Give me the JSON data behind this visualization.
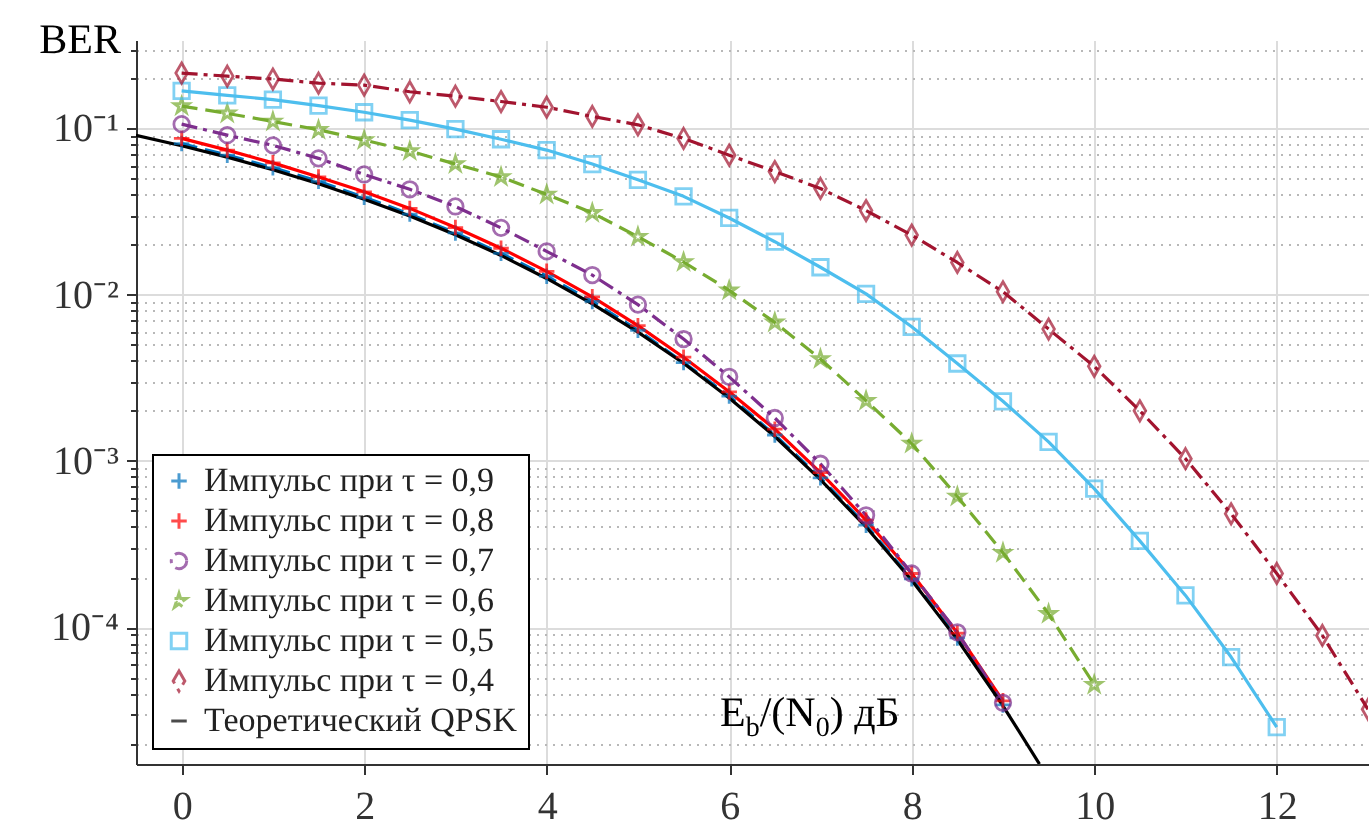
{
  "chart_data": {
    "type": "line",
    "xlabel": "E$_{b}$/(N$_{0}$) дБ",
    "ylabel": "BER",
    "log": "y",
    "grid": true,
    "legend": "bottom left",
    "xlim": [
      -0.5,
      13
    ],
    "xticks": [
      0,
      2,
      4,
      6,
      8,
      10,
      12
    ],
    "ylim": [
      1.5e-05,
      0.34
    ],
    "yticks": [
      {
        "value": 0.0001,
        "label": "10⁻⁴"
      },
      {
        "value": 0.001,
        "label": "10⁻³"
      },
      {
        "value": 0.01,
        "label": "10⁻²"
      },
      {
        "value": 0.1,
        "label": "10⁻¹"
      },
      {
        "value": 2e-05,
        "label": null
      },
      {
        "value": 3e-05,
        "label": null
      },
      {
        "value": 4e-05,
        "label": null
      },
      {
        "value": 5e-05,
        "label": null
      },
      {
        "value": 6e-05,
        "label": null
      },
      {
        "value": 7e-05,
        "label": null
      },
      {
        "value": 8e-05,
        "label": null
      },
      {
        "value": 9e-05,
        "label": null
      },
      {
        "value": 0.0002,
        "label": null
      },
      {
        "value": 0.0003,
        "label": null
      },
      {
        "value": 0.0004,
        "label": null
      },
      {
        "value": 0.0005,
        "label": null
      },
      {
        "value": 0.0006,
        "label": null
      },
      {
        "value": 0.0007,
        "label": null
      },
      {
        "value": 0.0008,
        "label": null
      },
      {
        "value": 0.0009,
        "label": null
      },
      {
        "value": 0.002,
        "label": null
      },
      {
        "value": 0.003,
        "label": null
      },
      {
        "value": 0.004,
        "label": null
      },
      {
        "value": 0.005,
        "label": null
      },
      {
        "value": 0.006,
        "label": null
      },
      {
        "value": 0.007,
        "label": null
      },
      {
        "value": 0.008,
        "label": null
      },
      {
        "value": 0.009,
        "label": null
      },
      {
        "value": 0.02,
        "label": null
      },
      {
        "value": 0.03,
        "label": null
      },
      {
        "value": 0.04,
        "label": null
      },
      {
        "value": 0.05,
        "label": null
      },
      {
        "value": 0.06,
        "label": null
      },
      {
        "value": 0.07,
        "label": null
      },
      {
        "value": 0.08,
        "label": null
      },
      {
        "value": 0.09,
        "label": null
      },
      {
        "value": 0.2,
        "label": null
      },
      {
        "value": 0.3,
        "label": null
      }
    ],
    "series": [
      {
        "name": "Импульс при τ = 0,9",
        "color": "#0072bd",
        "marker": "cross",
        "line_style": "dashed",
        "x": [
          0,
          0.5,
          1,
          1.5,
          2,
          2.5,
          3,
          3.5,
          4,
          4.5,
          5,
          5.5,
          6,
          6.5,
          7,
          7.5,
          8,
          8.5,
          9
        ],
        "values": [
          0.081,
          0.069,
          0.058,
          0.048,
          0.0385,
          0.0305,
          0.0235,
          0.0177,
          0.0129,
          0.0091,
          0.0061,
          0.0039,
          0.00245,
          0.00143,
          0.00079,
          0.00041,
          0.000195,
          8.6e-05,
          3.4e-05
        ]
      },
      {
        "name": "Импульс при τ = 0,8",
        "color": "#ff0000",
        "marker": "cross",
        "line_style": "solid",
        "x": [
          0,
          0.5,
          1,
          1.5,
          2,
          2.5,
          3,
          3.5,
          4,
          4.5,
          5,
          5.5,
          6,
          6.5,
          7,
          7.5,
          8,
          8.5,
          9
        ],
        "values": [
          0.087,
          0.074,
          0.062,
          0.051,
          0.0415,
          0.033,
          0.0253,
          0.019,
          0.0138,
          0.0097,
          0.0065,
          0.0042,
          0.0026,
          0.00155,
          0.00085,
          0.00044,
          0.00021,
          9.2e-05,
          3.6e-05
        ]
      },
      {
        "name": "Импульс при τ = 0,7",
        "color": "#7e2f8e",
        "marker": "circle",
        "line_style": "dashdot",
        "x": [
          0,
          0.5,
          1,
          1.5,
          2,
          2.5,
          3,
          3.5,
          4,
          4.5,
          5,
          5.5,
          6,
          6.5,
          7,
          7.5,
          8,
          8.5,
          9
        ],
        "values": [
          0.106,
          0.091,
          0.079,
          0.066,
          0.0528,
          0.043,
          0.0339,
          0.0252,
          0.0182,
          0.0131,
          0.0087,
          0.0054,
          0.0032,
          0.00181,
          0.00096,
          0.00047,
          0.00021,
          9.3e-05,
          3.5e-05
        ]
      },
      {
        "name": "Импульс при τ = 0,6",
        "color": "#77ac30",
        "marker": "star",
        "line_style": "dashed",
        "x": [
          0,
          0.5,
          1,
          1.5,
          2,
          2.5,
          3,
          3.5,
          4,
          4.5,
          5,
          5.5,
          6,
          6.5,
          7,
          7.5,
          8,
          8.5,
          9,
          9.5,
          10
        ],
        "values": [
          0.136,
          0.123,
          0.11,
          0.098,
          0.085,
          0.073,
          0.061,
          0.051,
          0.04,
          0.031,
          0.0223,
          0.0157,
          0.0106,
          0.0068,
          0.0041,
          0.0023,
          0.00127,
          0.00061,
          0.00028,
          0.00012,
          4.5e-05
        ]
      },
      {
        "name": "Импульс при τ = 0,5",
        "color": "#4dbeee",
        "marker": "square",
        "line_style": "solid",
        "x": [
          0,
          0.5,
          1,
          1.5,
          2,
          2.5,
          3,
          3.5,
          4,
          4.5,
          5,
          5.5,
          6,
          6.5,
          7,
          7.5,
          8,
          8.5,
          9,
          9.5,
          10,
          10.5,
          11,
          11.5,
          12
        ],
        "values": [
          0.168,
          0.158,
          0.149,
          0.137,
          0.125,
          0.112,
          0.099,
          0.086,
          0.074,
          0.061,
          0.049,
          0.039,
          0.0289,
          0.0208,
          0.0146,
          0.0101,
          0.0064,
          0.00385,
          0.00228,
          0.0013,
          0.00068,
          0.00033,
          0.000155,
          6.6e-05,
          2.5e-05
        ]
      },
      {
        "name": "Импульс при τ = 0,4",
        "color": "#a2142f",
        "marker": "diamond",
        "line_style": "dashdot",
        "x": [
          0,
          0.5,
          1,
          1.5,
          2,
          2.5,
          3,
          3.5,
          4,
          4.5,
          5,
          5.5,
          6,
          6.5,
          7,
          7.5,
          8,
          8.5,
          9,
          9.5,
          10,
          10.5,
          11,
          11.5,
          12,
          12.5,
          13
        ],
        "values": [
          0.215,
          0.206,
          0.198,
          0.187,
          0.182,
          0.166,
          0.156,
          0.145,
          0.134,
          0.118,
          0.105,
          0.087,
          0.069,
          0.055,
          0.0435,
          0.032,
          0.0228,
          0.0156,
          0.0104,
          0.0062,
          0.0037,
          0.002,
          0.00103,
          0.00048,
          0.00021,
          8.9e-05,
          3.2e-05
        ]
      },
      {
        "name": "Теоретический QPSK",
        "color": "#000000",
        "marker": "none",
        "line_style": "solid",
        "x": [
          -0.5,
          0,
          0.5,
          1,
          1.5,
          2,
          2.5,
          3,
          3.5,
          4,
          4.5,
          5,
          5.5,
          6,
          6.5,
          7,
          7.5,
          8,
          8.5,
          9,
          9.4
        ],
        "values": [
          0.0909,
          0.0786,
          0.0671,
          0.0563,
          0.0464,
          0.0375,
          0.0297,
          0.0229,
          0.0172,
          0.0125,
          0.0088,
          0.00595,
          0.00386,
          0.00239,
          0.0014,
          0.00077,
          0.0004,
          0.000191,
          8.4e-05,
          3.36e-05,
          1.5e-05
        ]
      }
    ]
  }
}
